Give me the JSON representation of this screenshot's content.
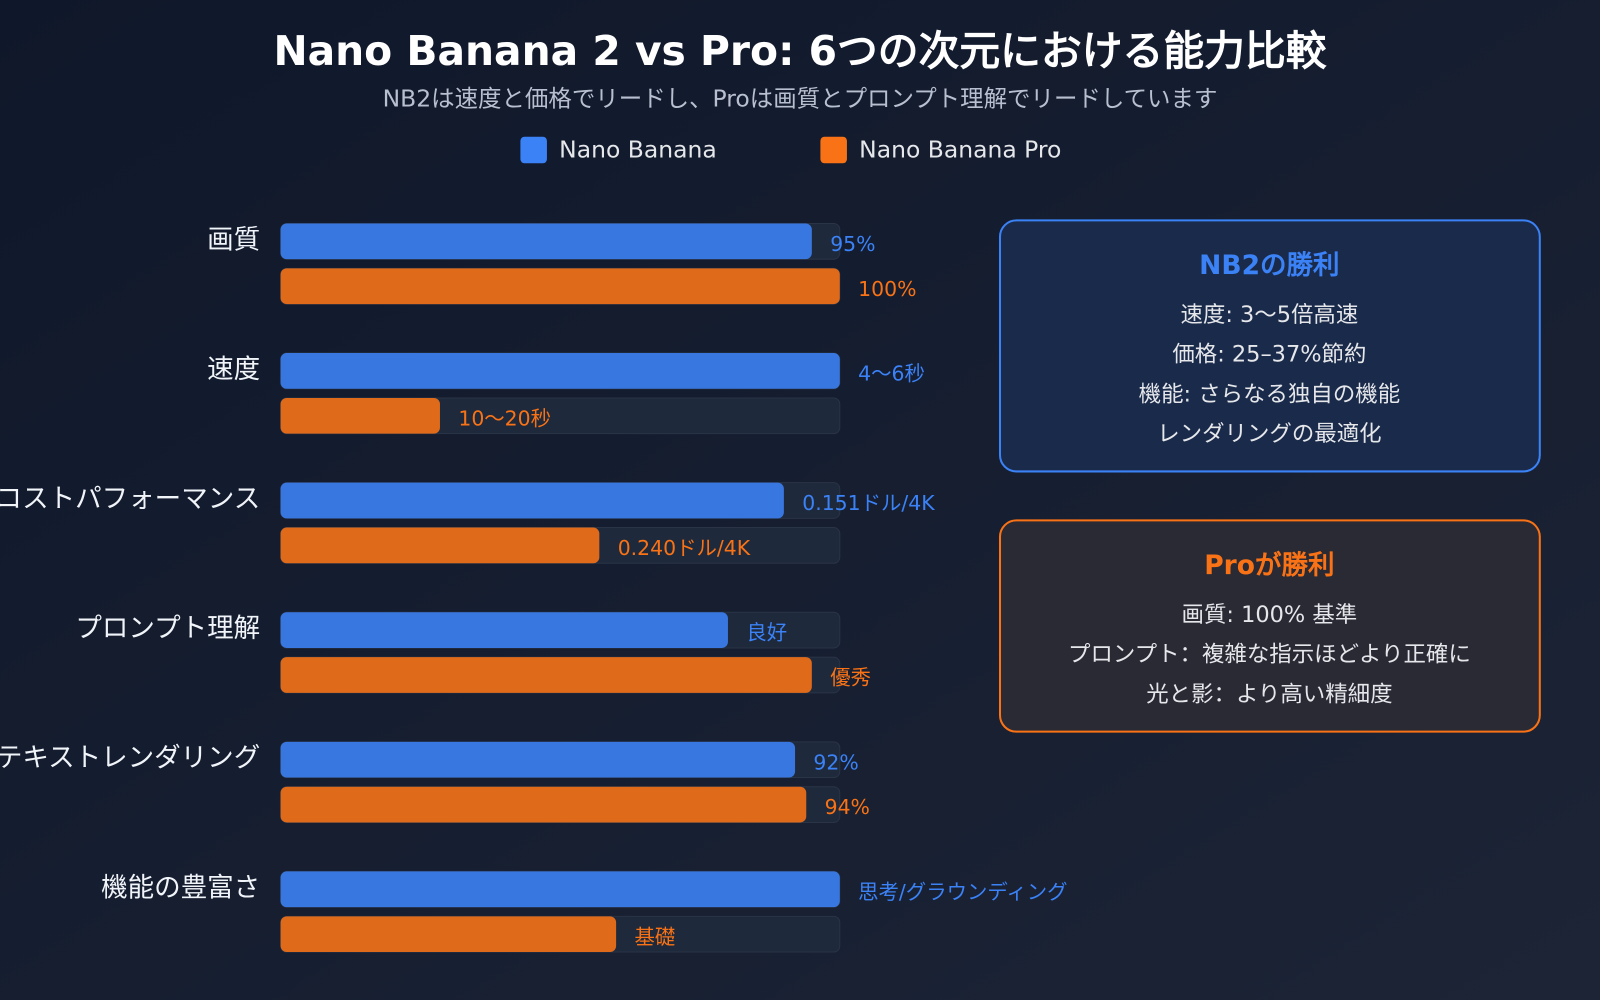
{
  "chart_data": {
    "type": "bar",
    "orientation": "horizontal",
    "title": "Nano Banana 2 vs Pro: 6つの次元における能力比較",
    "subtitle": "NB2は速度と価格でリードし、Proは画質とプロンプト理解でリードしています",
    "categories": [
      "画質",
      "速度",
      "コストパフォーマンス",
      "プロンプト理解",
      "テキストレンダリング",
      "機能の豊富さ"
    ],
    "xlim": [
      0,
      100
    ],
    "series": [
      {
        "name": "Nano Banana",
        "color": "#3b82f6",
        "values": [
          95,
          100,
          90,
          80,
          92,
          100
        ],
        "value_labels": [
          "95%",
          "4〜6秒",
          "0.151ドル/4K",
          "良好",
          "92%",
          "思考/グラウンディング"
        ]
      },
      {
        "name": "Nano Banana Pro",
        "color": "#f97316",
        "values": [
          100,
          28.5,
          57,
          95,
          94,
          60
        ],
        "value_labels": [
          "100%",
          "10〜20秒",
          "0.240ドル/4K",
          "優秀",
          "94%",
          "基礎"
        ]
      }
    ]
  },
  "panels": [
    {
      "title": "NB2の勝利",
      "color": "#3b82f6",
      "lines": [
        "速度: 3〜5倍高速",
        "価格: 25–37%節約",
        "機能: さらなる独自の機能",
        "レンダリングの最適化"
      ]
    },
    {
      "title": "Proが勝利",
      "color": "#f97316",
      "lines": [
        "画質: 100% 基準",
        "プロンプト：複雑な指示ほどより正確に",
        "光と影：より高い精細度"
      ]
    }
  ]
}
